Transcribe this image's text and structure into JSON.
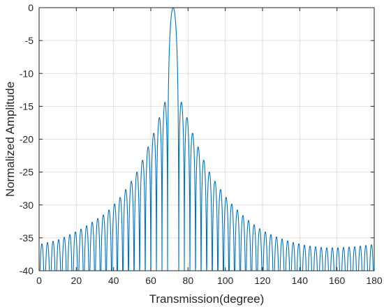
{
  "chart_data": {
    "type": "line",
    "title": "",
    "xlabel": "Transmission(degree)",
    "ylabel": "Normalized Amplitude",
    "xlim": [
      0,
      180
    ],
    "ylim": [
      -40,
      0
    ],
    "xticks": [
      0,
      20,
      40,
      60,
      80,
      100,
      120,
      140,
      160,
      180
    ],
    "yticks": [
      0,
      -5,
      -10,
      -15,
      -20,
      -25,
      -30,
      -35,
      -40
    ],
    "xtick_labels": [
      "0",
      "20",
      "40",
      "60",
      "80",
      "100",
      "120",
      "140",
      "160",
      "180"
    ],
    "ytick_labels": [
      "0",
      "-5",
      "-10",
      "-15",
      "-20",
      "-25",
      "-30",
      "-35",
      "-40"
    ],
    "grid": true,
    "legend": "none",
    "series": [
      {
        "color": "#0072BD",
        "main_lobe_center": 72,
        "main_lobe_peak": 0,
        "null_level": -40,
        "x": [
          0,
          3,
          6,
          9,
          12,
          15,
          18,
          21,
          24,
          27,
          30,
          33,
          36,
          39,
          42,
          45,
          48,
          51,
          54,
          57,
          60,
          63,
          66,
          69,
          72,
          75,
          78,
          81,
          84,
          87,
          90,
          93,
          96,
          99,
          102,
          105,
          108,
          111,
          114,
          117,
          120,
          123,
          126,
          129,
          132,
          135,
          138,
          141,
          144,
          147,
          150,
          153,
          156,
          159,
          162,
          165,
          168,
          171,
          174,
          177,
          180
        ],
        "y": [
          -36,
          -35.8,
          -35.6,
          -35.4,
          -35.1,
          -34.7,
          -34.3,
          -33.9,
          -33.4,
          -32.9,
          -32.3,
          -31.8,
          -31.2,
          -30.3,
          -29.4,
          -28.3,
          -27,
          -25.8,
          -24.2,
          -22.2,
          -20.2,
          -18,
          -15.5,
          -13.3,
          0,
          -13.3,
          -15.5,
          -18,
          -20.2,
          -22.2,
          -24.2,
          -25.8,
          -27,
          -28.3,
          -29.4,
          -30.3,
          -31.2,
          -32,
          -32.7,
          -33.3,
          -33.9,
          -34.3,
          -34.7,
          -35,
          -35.3,
          -35.6,
          -35.8,
          -36,
          -36.2,
          -36.3,
          -36.4,
          -36.5,
          -36.5,
          -36.5,
          -36.5,
          -36.4,
          -36.4,
          -36.3,
          -36.2,
          -36.1,
          -36
        ]
      }
    ]
  }
}
